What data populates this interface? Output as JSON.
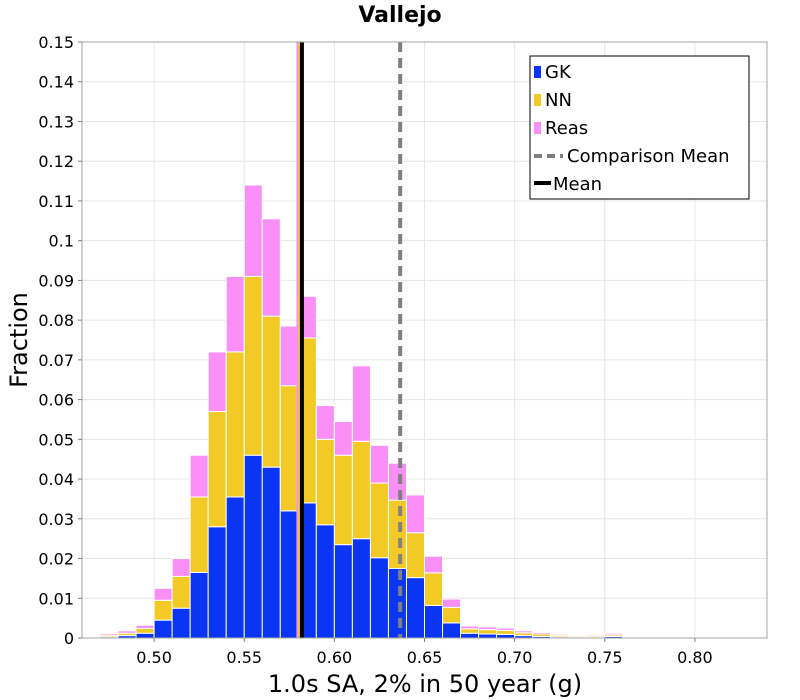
{
  "chart_data": {
    "type": "bar",
    "stacked": true,
    "title": "Vallejo",
    "xlabel": "1.0s SA, 2% in 50 year (g)",
    "ylabel": "Fraction",
    "xlim": [
      0.46,
      0.84
    ],
    "ylim": [
      0,
      0.15
    ],
    "bin_width": 0.01,
    "grid": true,
    "legend_position": "top-right",
    "x_ticks": [
      {
        "value": 0.5,
        "label": "0.50"
      },
      {
        "value": 0.55,
        "label": "0.55"
      },
      {
        "value": 0.6,
        "label": "0.60"
      },
      {
        "value": 0.65,
        "label": "0.65"
      },
      {
        "value": 0.7,
        "label": "0.70"
      },
      {
        "value": 0.75,
        "label": "0.75"
      },
      {
        "value": 0.8,
        "label": "0.80"
      }
    ],
    "y_ticks": [
      {
        "value": 0,
        "label": "0"
      },
      {
        "value": 0.01,
        "label": "0.01"
      },
      {
        "value": 0.02,
        "label": "0.02"
      },
      {
        "value": 0.03,
        "label": "0.03"
      },
      {
        "value": 0.04,
        "label": "0.04"
      },
      {
        "value": 0.05,
        "label": "0.05"
      },
      {
        "value": 0.06,
        "label": "0.06"
      },
      {
        "value": 0.07,
        "label": "0.07"
      },
      {
        "value": 0.08,
        "label": "0.08"
      },
      {
        "value": 0.09,
        "label": "0.09"
      },
      {
        "value": 0.1,
        "label": "0.1"
      },
      {
        "value": 0.11,
        "label": "0.11"
      },
      {
        "value": 0.12,
        "label": "0.12"
      },
      {
        "value": 0.13,
        "label": "0.13"
      },
      {
        "value": 0.14,
        "label": "0.14"
      },
      {
        "value": 0.15,
        "label": "0.15"
      }
    ],
    "bins": [
      0.465,
      0.475,
      0.485,
      0.495,
      0.505,
      0.515,
      0.525,
      0.535,
      0.545,
      0.555,
      0.565,
      0.575,
      0.585,
      0.595,
      0.605,
      0.615,
      0.625,
      0.635,
      0.645,
      0.655,
      0.665,
      0.675,
      0.685,
      0.695,
      0.705,
      0.715,
      0.725,
      0.735,
      0.745,
      0.755,
      0.765,
      0.775,
      0.785,
      0.795,
      0.805,
      0.815,
      0.825
    ],
    "series": [
      {
        "name": "GK",
        "color": "#0a35f5",
        "values": [
          0.0002,
          0.0003,
          0.0006,
          0.0012,
          0.0045,
          0.0075,
          0.0165,
          0.028,
          0.0355,
          0.046,
          0.043,
          0.032,
          0.034,
          0.0285,
          0.0235,
          0.025,
          0.0202,
          0.0175,
          0.0152,
          0.0082,
          0.0038,
          0.0012,
          0.001,
          0.0009,
          0.0006,
          0.0004,
          0.0003,
          0.0002,
          0.0002,
          0.0004,
          0.0002,
          0.0001,
          0.0001,
          0,
          0,
          0,
          0
        ]
      },
      {
        "name": "NN",
        "color": "#f2c925",
        "values": [
          0.0001,
          0.0004,
          0.0006,
          0.0012,
          0.005,
          0.008,
          0.019,
          0.029,
          0.0365,
          0.045,
          0.038,
          0.0315,
          0.0415,
          0.0215,
          0.0225,
          0.0245,
          0.0188,
          0.0172,
          0.0113,
          0.0082,
          0.0039,
          0.0011,
          0.0011,
          0.001,
          0.0007,
          0.0006,
          0.0004,
          0.0003,
          0.0003,
          0.0004,
          0.0002,
          0.0001,
          0.0001,
          0,
          0,
          0,
          0
        ]
      },
      {
        "name": "Reas",
        "color": "#fb8ff8",
        "values": [
          0.0002,
          0.0004,
          0.0006,
          0.0008,
          0.003,
          0.0045,
          0.0105,
          0.015,
          0.019,
          0.023,
          0.0245,
          0.015,
          0.0105,
          0.0085,
          0.0085,
          0.019,
          0.0095,
          0.0093,
          0.0095,
          0.0042,
          0.0021,
          0.0007,
          0.0007,
          0.0006,
          0.0005,
          0.0004,
          0.0003,
          0.0002,
          0.0003,
          0.0004,
          0.0002,
          0.0001,
          0.0001,
          0,
          0,
          0,
          0
        ]
      }
    ],
    "lines": [
      {
        "name": "Comparison Mean",
        "x": 0.6365,
        "color": "#808080",
        "style": "dashed"
      },
      {
        "name": "Mean",
        "x": 0.582,
        "color": "#000000",
        "style": "solid"
      }
    ],
    "extra_lines": [
      {
        "x": 0.5795,
        "color": "#fb8ff8"
      },
      {
        "x": 0.5805,
        "color": "#f2c925"
      },
      {
        "x": 0.5815,
        "color": "#0a35f5"
      }
    ]
  }
}
